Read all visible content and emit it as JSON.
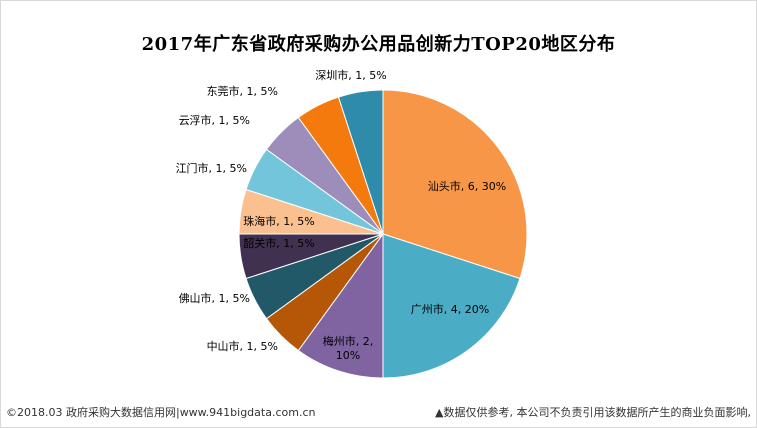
{
  "title": "2017年广东省政府采购办公用品创新力TOP20地区分布",
  "footer": {
    "left": "©2018.03 政府采购大数据信用网|www.941bigdata.com.cn",
    "right": "▲数据仅供参考, 本公司不负责引用该数据所产生的商业负面影响,"
  },
  "chart_data": {
    "type": "pie",
    "title": "2017年广东省政府采购办公用品创新力TOP20地区分布",
    "slices": [
      {
        "category": "汕头市",
        "value": 6,
        "percent": "30%",
        "label": "汕头市, 6, 30%",
        "color": "#F79646"
      },
      {
        "category": "广州市",
        "value": 4,
        "percent": "20%",
        "label": "广州市, 4, 20%",
        "color": "#4BACC6"
      },
      {
        "category": "梅州市",
        "value": 2,
        "percent": "10%",
        "label": "梅州市, 2, 10%",
        "color": "#8064A2"
      },
      {
        "category": "中山市",
        "value": 1,
        "percent": "5%",
        "label": "中山市, 1, 5%",
        "color": "#B65708"
      },
      {
        "category": "佛山市",
        "value": 1,
        "percent": "5%",
        "label": "佛山市, 1, 5%",
        "color": "#215968"
      },
      {
        "category": "韶关市",
        "value": 1,
        "percent": "5%",
        "label": "韶关市, 1, 5%",
        "color": "#403151"
      },
      {
        "category": "珠海市",
        "value": 1,
        "percent": "5%",
        "label": "珠海市, 1, 5%",
        "color": "#FAC090"
      },
      {
        "category": "江门市",
        "value": 1,
        "percent": "5%",
        "label": "江门市, 1, 5%",
        "color": "#72C5DB"
      },
      {
        "category": "云浮市",
        "value": 1,
        "percent": "5%",
        "label": "云浮市, 1, 5%",
        "color": "#9C8DBB"
      },
      {
        "category": "东莞市",
        "value": 1,
        "percent": "5%",
        "label": "东莞市, 1, 5%",
        "color": "#F47A0E"
      },
      {
        "category": "深圳市",
        "value": 1,
        "percent": "5%",
        "label": "深圳市, 1, 5%",
        "color": "#2E8BAA"
      }
    ]
  }
}
